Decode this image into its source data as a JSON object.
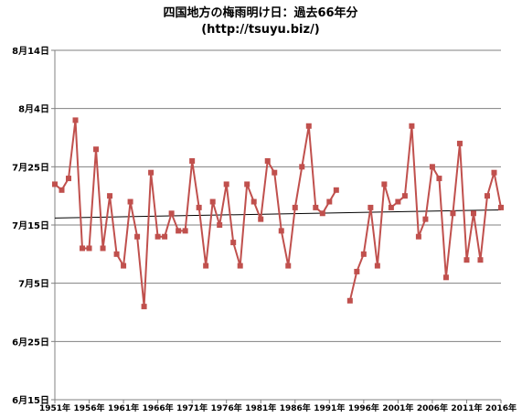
{
  "chart_data": {
    "type": "line",
    "title": "四国地方の梅雨明け日：過去66年分",
    "subtitle": "(http://tsuyu.biz/)",
    "y_ticks": [
      {
        "value": 105,
        "label": "8月14日"
      },
      {
        "value": 95,
        "label": "8月4日"
      },
      {
        "value": 85,
        "label": "7月25日"
      },
      {
        "value": 75,
        "label": "7月15日"
      },
      {
        "value": 65,
        "label": "7月5日"
      },
      {
        "value": 55,
        "label": "6月25日"
      },
      {
        "value": 45,
        "label": "6月15日"
      }
    ],
    "ylim": [
      45,
      105
    ],
    "y_axis_note": "values are days counted from June 1 (label = date)",
    "x_ticks": [
      {
        "value": 1951,
        "label": "1951年"
      },
      {
        "value": 1956,
        "label": "1956年"
      },
      {
        "value": 1961,
        "label": "1961年"
      },
      {
        "value": 1966,
        "label": "1966年"
      },
      {
        "value": 1971,
        "label": "1971年"
      },
      {
        "value": 1976,
        "label": "1976年"
      },
      {
        "value": 1981,
        "label": "1981年"
      },
      {
        "value": 1986,
        "label": "1986年"
      },
      {
        "value": 1991,
        "label": "1991年"
      },
      {
        "value": 1996,
        "label": "1996年"
      },
      {
        "value": 2001,
        "label": "2001年"
      },
      {
        "value": 2006,
        "label": "2006年"
      },
      {
        "value": 2011,
        "label": "2011年"
      },
      {
        "value": 2016,
        "label": "2016年"
      }
    ],
    "xlim": [
      1951,
      2016
    ],
    "series": [
      {
        "color": "#c0504d",
        "x": [
          1951,
          1952,
          1953,
          1954,
          1955,
          1956,
          1957,
          1958,
          1959,
          1960,
          1961,
          1962,
          1963,
          1964,
          1965,
          1966,
          1967,
          1968,
          1969,
          1970,
          1971,
          1972,
          1973,
          1974,
          1975,
          1976,
          1977,
          1978,
          1979,
          1980,
          1981,
          1982,
          1983,
          1984,
          1985,
          1986,
          1987,
          1988,
          1989,
          1990,
          1991,
          1992,
          1993,
          1994,
          1995,
          1996,
          1997,
          1998,
          1999,
          2000,
          2001,
          2002,
          2003,
          2004,
          2005,
          2006,
          2007,
          2008,
          2009,
          2010,
          2011,
          2012,
          2013,
          2014,
          2015,
          2016
        ],
        "values": [
          82,
          81,
          83,
          93,
          71,
          71,
          88,
          71,
          80,
          70,
          68,
          79,
          73,
          61,
          84,
          73,
          73,
          77,
          74,
          74,
          86,
          78,
          68,
          79,
          75,
          82,
          72,
          68,
          82,
          79,
          76,
          86,
          84,
          74,
          68,
          78,
          85,
          92,
          78,
          77,
          79,
          81,
          null,
          62,
          67,
          70,
          78,
          68,
          82,
          78,
          79,
          80,
          92,
          73,
          76,
          85,
          83,
          66,
          77,
          89,
          69,
          77,
          69,
          80,
          84,
          78
        ]
      }
    ],
    "trendline": {
      "color": "#000000",
      "start": [
        1951,
        76.2
      ],
      "end": [
        2016,
        77.6
      ]
    },
    "grid": true,
    "legend": "none"
  }
}
